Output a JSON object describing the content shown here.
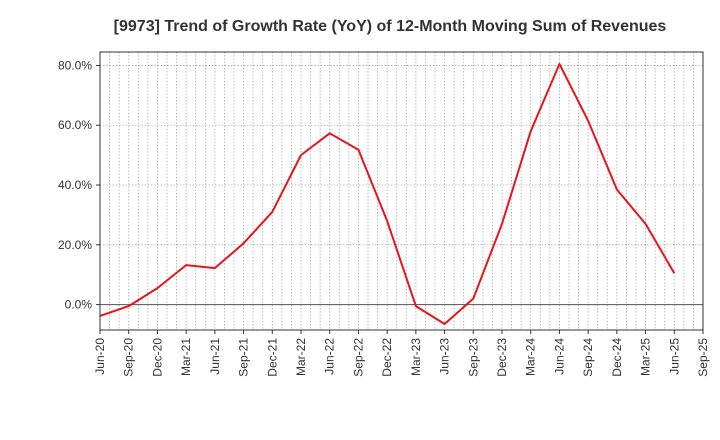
{
  "chart_data": {
    "type": "line",
    "title": "[9973]  Trend of Growth Rate (YoY) of 12-Month Moving Sum of Revenues",
    "xlabel": "",
    "ylabel": "",
    "y_unit": "%",
    "ylim": [
      -8.5,
      84.5
    ],
    "yticks": [
      0,
      20,
      40,
      60,
      80
    ],
    "ytick_labels": [
      "0.0%",
      "20.0%",
      "40.0%",
      "60.0%",
      "80.0%"
    ],
    "xticks": [
      "Jun-20",
      "Sep-20",
      "Dec-20",
      "Mar-21",
      "Jun-21",
      "Sep-21",
      "Dec-21",
      "Mar-22",
      "Jun-22",
      "Sep-22",
      "Dec-22",
      "Mar-23",
      "Jun-23",
      "Sep-23",
      "Dec-23",
      "Mar-24",
      "Jun-24",
      "Sep-24",
      "Dec-24",
      "Mar-25",
      "Jun-25",
      "Sep-25"
    ],
    "grid": true,
    "zero_line": true,
    "series": [
      {
        "color": "#e8141b",
        "x": [
          "Jun-20",
          "Sep-20",
          "Dec-20",
          "Mar-21",
          "Jun-21",
          "Sep-21",
          "Dec-21",
          "Mar-22",
          "Jun-22",
          "Sep-22",
          "Dec-22",
          "Mar-23",
          "Jun-23",
          "Sep-23",
          "Dec-23",
          "Mar-24",
          "Jun-24",
          "Sep-24",
          "Dec-24",
          "Mar-25",
          "Jun-25"
        ],
        "values": [
          -3.8,
          -0.5,
          5.5,
          13.2,
          12.2,
          20.5,
          31.0,
          50.0,
          57.3,
          51.8,
          28.0,
          -0.5,
          -6.5,
          2.0,
          27.0,
          58.0,
          80.5,
          61.5,
          38.5,
          27.0,
          10.5
        ]
      }
    ]
  }
}
